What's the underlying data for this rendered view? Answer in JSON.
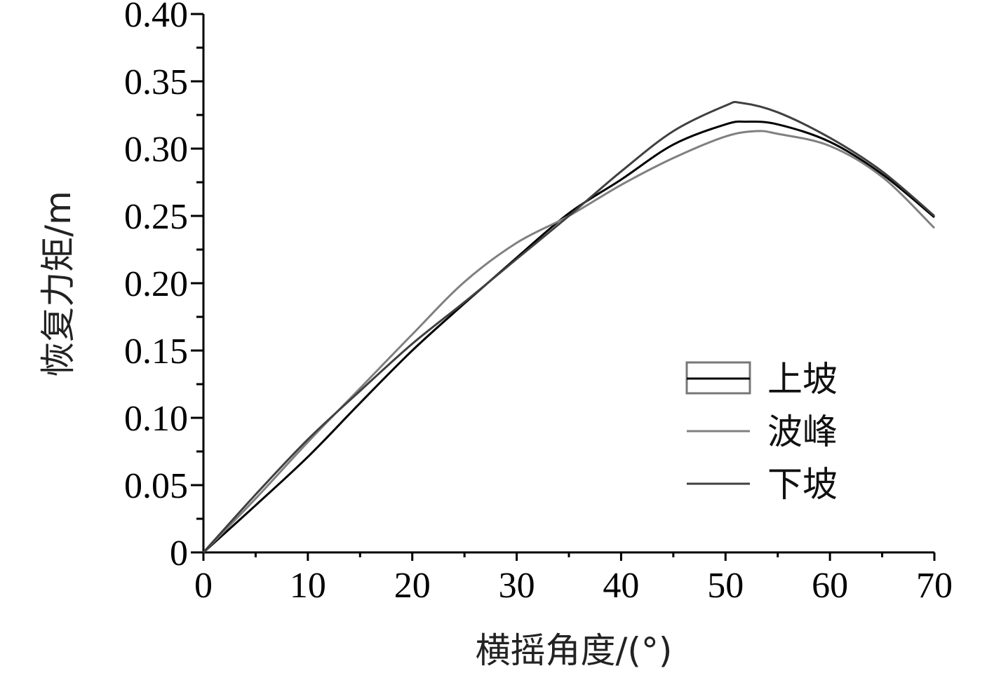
{
  "chart_data": {
    "type": "line",
    "title": "",
    "xlabel": "横摇角度/(°)",
    "ylabel": "恢复力矩/m",
    "xlim": [
      0,
      70
    ],
    "ylim": [
      0,
      0.4
    ],
    "x_ticks": [
      "0",
      "10",
      "20",
      "30",
      "40",
      "50",
      "60",
      "70"
    ],
    "y_ticks": [
      "0",
      "0.05",
      "0.10",
      "0.15",
      "0.20",
      "0.25",
      "0.30",
      "0.35",
      "0.40"
    ],
    "grid": false,
    "legend_position": "lower-right",
    "series": [
      {
        "name": "上坡",
        "color": "#000000",
        "x": [
          0,
          5,
          10,
          15,
          20,
          25,
          30,
          35,
          40,
          45,
          50,
          52,
          55,
          60,
          65,
          70
        ],
        "y": [
          0,
          0.035,
          0.071,
          0.111,
          0.15,
          0.185,
          0.219,
          0.252,
          0.277,
          0.303,
          0.318,
          0.32,
          0.318,
          0.305,
          0.281,
          0.249
        ]
      },
      {
        "name": "波峰",
        "color": "#808080",
        "x": [
          0,
          5,
          10,
          15,
          20,
          25,
          30,
          35,
          40,
          45,
          50,
          53,
          55,
          60,
          65,
          70
        ],
        "y": [
          0,
          0.04,
          0.082,
          0.122,
          0.162,
          0.201,
          0.23,
          0.25,
          0.273,
          0.293,
          0.309,
          0.313,
          0.311,
          0.302,
          0.279,
          0.241
        ]
      },
      {
        "name": "下坡",
        "color": "#404040",
        "x": [
          0,
          5,
          10,
          15,
          20,
          25,
          30,
          35,
          40,
          45,
          50,
          51.5,
          55,
          60,
          65,
          70
        ],
        "y": [
          0,
          0.043,
          0.084,
          0.12,
          0.155,
          0.186,
          0.218,
          0.25,
          0.283,
          0.313,
          0.332,
          0.334,
          0.327,
          0.308,
          0.283,
          0.25
        ]
      }
    ]
  }
}
